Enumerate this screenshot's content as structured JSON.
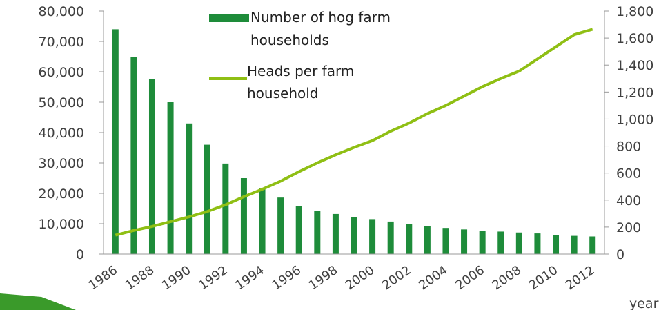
{
  "chart_data": {
    "type": "bar+line",
    "categories": [
      "1986",
      "1987",
      "1988",
      "1989",
      "1990",
      "1991",
      "1992",
      "1993",
      "1994",
      "1995",
      "1996",
      "1997",
      "1998",
      "1999",
      "2000",
      "2001",
      "2002",
      "2003",
      "2004",
      "2005",
      "2006",
      "2007",
      "2008",
      "2009",
      "2010",
      "2011",
      "2012"
    ],
    "x_tick_labels": [
      "1986",
      "1988",
      "1990",
      "1992",
      "1994",
      "1996",
      "1998",
      "2000",
      "2002",
      "2004",
      "2006",
      "2008",
      "2010",
      "2012"
    ],
    "xlabel": "year",
    "left_axis": {
      "ylim": [
        0,
        80000
      ],
      "ticks": [
        "0",
        "10,000",
        "20,000",
        "30,000",
        "40,000",
        "50,000",
        "60,000",
        "70,000",
        "80,000"
      ]
    },
    "right_axis": {
      "ylim": [
        0,
        1800
      ],
      "ticks": [
        "0",
        "200",
        "400",
        "600",
        "800",
        "1,000",
        "1,200",
        "1,400",
        "1,600",
        "1,800"
      ]
    },
    "series": [
      {
        "name": "Number of hog farm households",
        "type": "bar",
        "axis": "left",
        "color": "#1e8c3a",
        "values": [
          74000,
          65000,
          57500,
          50000,
          43000,
          36000,
          29800,
          25000,
          21800,
          18600,
          15800,
          14300,
          13200,
          12200,
          11500,
          10700,
          9800,
          9200,
          8600,
          8100,
          7700,
          7400,
          7100,
          6800,
          6300,
          6000,
          5800
        ]
      },
      {
        "name": "Heads per farm household",
        "type": "line",
        "axis": "right",
        "color": "#8fbf14",
        "values": [
          140,
          175,
          205,
          240,
          275,
          315,
          365,
          425,
          480,
          540,
          610,
          675,
          735,
          790,
          840,
          910,
          970,
          1040,
          1100,
          1170,
          1240,
          1300,
          1355,
          1445,
          1535,
          1625,
          1665
        ]
      }
    ],
    "legend": [
      {
        "label": "Number of hog farm households",
        "line2": ""
      },
      {
        "label": "Heads per farm",
        "line2": "household"
      }
    ],
    "legend_bar_label_lines": [
      "Number of hog farm",
      "households"
    ],
    "legend_line_label_lines": [
      "Heads per farm",
      "household"
    ],
    "legend_position": "top-center",
    "grid": false
  },
  "colors": {
    "accent_dark": "#1e8c3a",
    "accent_light": "#8fbf14",
    "axis": "#999999",
    "text": "#404040"
  }
}
